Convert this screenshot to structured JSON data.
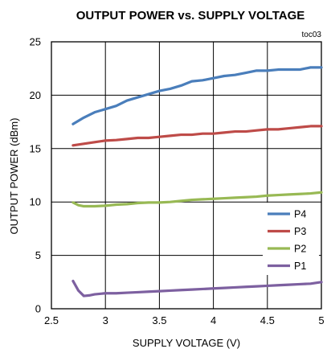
{
  "chart_data": {
    "type": "line",
    "title": "OUTPUT POWER vs. SUPPLY VOLTAGE",
    "note": "toc03",
    "xlabel": "SUPPLY VOLTAGE (V)",
    "ylabel": "OUTPUT POWER (dBm)",
    "xlim": [
      2.5,
      5
    ],
    "ylim": [
      0,
      25
    ],
    "xticks": [
      "2.5",
      "3",
      "3.5",
      "4",
      "4.5",
      "5"
    ],
    "yticks": [
      "0",
      "5",
      "10",
      "15",
      "20",
      "25"
    ],
    "grid": true,
    "legend_position": "bottom-right",
    "series": [
      {
        "name": "P4",
        "color": "#4a7ebb",
        "x": [
          2.7,
          2.8,
          2.9,
          3.0,
          3.1,
          3.2,
          3.3,
          3.4,
          3.5,
          3.6,
          3.7,
          3.8,
          3.9,
          4.0,
          4.1,
          4.2,
          4.3,
          4.4,
          4.5,
          4.6,
          4.7,
          4.8,
          4.9,
          5.0
        ],
        "y": [
          17.3,
          17.9,
          18.4,
          18.7,
          19.0,
          19.5,
          19.8,
          20.1,
          20.4,
          20.6,
          20.9,
          21.3,
          21.4,
          21.6,
          21.8,
          21.9,
          22.1,
          22.3,
          22.3,
          22.4,
          22.4,
          22.4,
          22.6,
          22.6
        ]
      },
      {
        "name": "P3",
        "color": "#be4b48",
        "x": [
          2.7,
          2.8,
          2.9,
          3.0,
          3.1,
          3.2,
          3.3,
          3.4,
          3.5,
          3.6,
          3.7,
          3.8,
          3.9,
          4.0,
          4.1,
          4.2,
          4.3,
          4.4,
          4.5,
          4.6,
          4.7,
          4.8,
          4.9,
          5.0
        ],
        "y": [
          15.3,
          15.45,
          15.6,
          15.75,
          15.8,
          15.9,
          16.0,
          16.0,
          16.1,
          16.2,
          16.3,
          16.3,
          16.4,
          16.4,
          16.5,
          16.6,
          16.6,
          16.7,
          16.8,
          16.8,
          16.9,
          17.0,
          17.1,
          17.1
        ]
      },
      {
        "name": "P2",
        "color": "#98b954",
        "x": [
          2.7,
          2.75,
          2.8,
          2.9,
          3.0,
          3.1,
          3.2,
          3.3,
          3.4,
          3.5,
          3.6,
          3.7,
          3.8,
          3.9,
          4.0,
          4.1,
          4.2,
          4.3,
          4.4,
          4.5,
          4.6,
          4.7,
          4.8,
          4.9,
          5.0
        ],
        "y": [
          9.95,
          9.7,
          9.6,
          9.6,
          9.65,
          9.75,
          9.8,
          9.9,
          9.95,
          9.95,
          10.0,
          10.1,
          10.2,
          10.25,
          10.3,
          10.35,
          10.4,
          10.45,
          10.5,
          10.6,
          10.65,
          10.7,
          10.75,
          10.8,
          10.9
        ]
      },
      {
        "name": "P1",
        "color": "#7d60a0",
        "x": [
          2.7,
          2.75,
          2.8,
          2.85,
          2.9,
          3.0,
          3.1,
          3.2,
          3.3,
          3.4,
          3.5,
          3.6,
          3.7,
          3.8,
          3.9,
          4.0,
          4.1,
          4.2,
          4.3,
          4.4,
          4.5,
          4.6,
          4.7,
          4.8,
          4.9,
          5.0
        ],
        "y": [
          2.6,
          1.7,
          1.2,
          1.25,
          1.35,
          1.45,
          1.45,
          1.5,
          1.55,
          1.6,
          1.65,
          1.7,
          1.75,
          1.8,
          1.85,
          1.9,
          1.95,
          2.0,
          2.05,
          2.1,
          2.15,
          2.2,
          2.25,
          2.3,
          2.35,
          2.5
        ]
      }
    ]
  }
}
